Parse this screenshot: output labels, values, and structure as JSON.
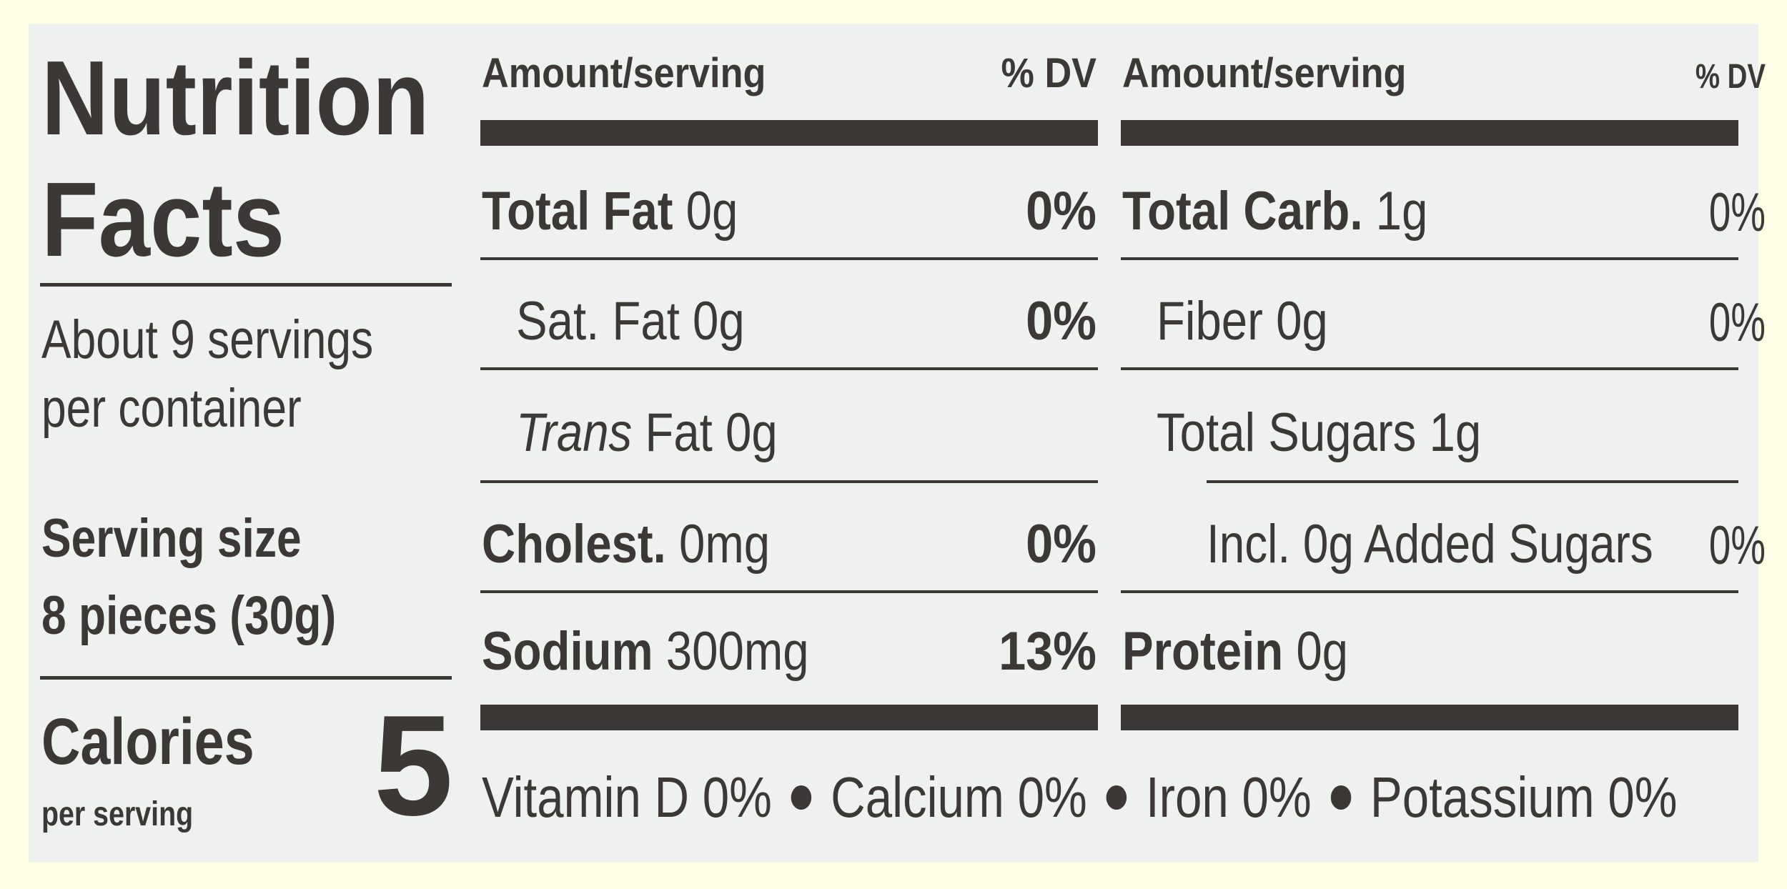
{
  "title_line1": "Nutrition",
  "title_line2": "Facts",
  "servings_line1": "About 9 servings",
  "servings_line2": "per container",
  "serving_size_label": "Serving size",
  "serving_size_value": "8 pieces (30g)",
  "calories_label": "Calories",
  "calories_sub": "per serving",
  "calories_value": "5",
  "left_col": {
    "header_amount": "Amount/serving",
    "header_dv": "% DV",
    "total_fat_label": "Total Fat",
    "total_fat_amount": "0g",
    "total_fat_dv": "0%",
    "sat_fat_label": "Sat. Fat 0g",
    "sat_fat_dv": "0%",
    "trans_fat_italic": "Trans",
    "trans_fat_rest": "Fat 0g",
    "cholest_label": "Cholest.",
    "cholest_amount": "0mg",
    "cholest_dv": "0%",
    "sodium_label": "Sodium",
    "sodium_amount": "300mg",
    "sodium_dv": "13%"
  },
  "right_col": {
    "header_amount": "Amount/serving",
    "header_dv": "% DV",
    "total_carb_label": "Total Carb.",
    "total_carb_amount": "1g",
    "total_carb_dv": "0%",
    "fiber_label": "Fiber 0g",
    "fiber_dv": "0%",
    "total_sugars_label": "Total Sugars 1g",
    "added_sugars_label": "Incl. 0g Added Sugars",
    "added_sugars_dv": "0%",
    "protein_label": "Protein",
    "protein_amount": "0g"
  },
  "vitamins": {
    "vitamin_d": "Vitamin D 0%",
    "calcium": "Calcium 0%",
    "iron": "Iron 0%",
    "potassium": "Potassium 0%"
  }
}
